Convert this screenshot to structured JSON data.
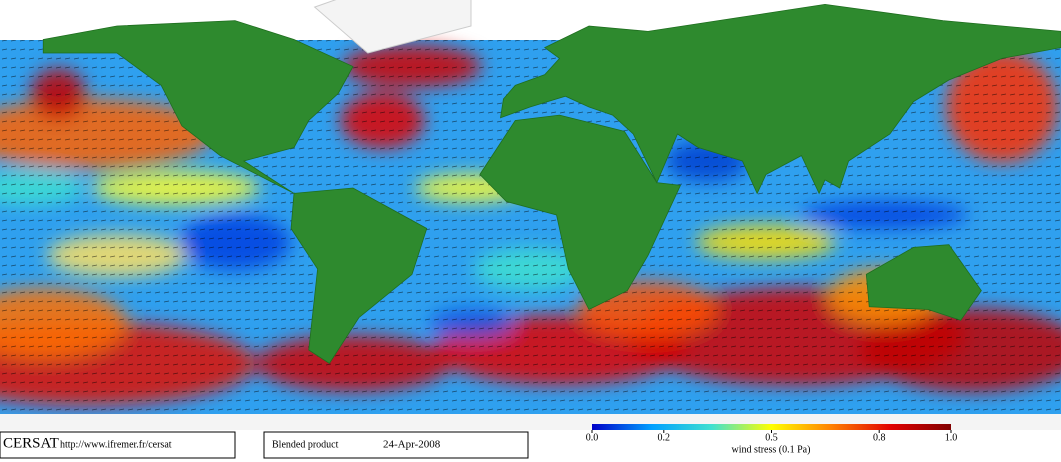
{
  "footer": {
    "logo": "CERSAT",
    "url": "http://www.ifremer.fr/cersat",
    "product": "Blended product",
    "date": "24-Apr-2008"
  },
  "colorbar": {
    "lim": [
      0,
      1
    ],
    "ticks": [
      {
        "value": 0,
        "label": "0.0"
      },
      0.2,
      0.5,
      0.8,
      {
        "value": 1,
        "label": "1.0"
      }
    ],
    "colors": [
      "#0000c8",
      "#00a0ff",
      "#40e0d0",
      "#ffff00",
      "#ff8000",
      "#e00000",
      "#800000"
    ],
    "label": "wind stress (0.1 Pa)"
  }
}
